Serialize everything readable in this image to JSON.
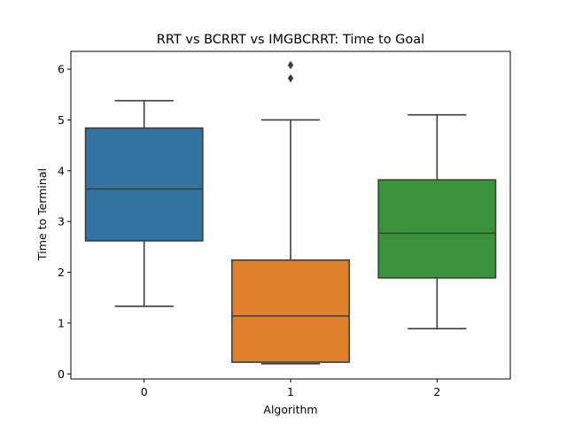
{
  "chart_data": {
    "type": "box",
    "title": "RRT vs BCRRT vs IMGBCRRT: Time to Goal",
    "xlabel": "Algorithm",
    "ylabel": "Time to Terminal",
    "categories": [
      "0",
      "1",
      "2"
    ],
    "ylim": [
      -0.1,
      6.35
    ],
    "yticks": [
      0,
      1,
      2,
      3,
      4,
      5,
      6
    ],
    "grid": false,
    "legend": "none",
    "boxes": [
      {
        "category": "0",
        "whisker_low": 1.33,
        "q1": 2.62,
        "median": 3.64,
        "q3": 4.84,
        "whisker_high": 5.38,
        "outliers": [],
        "color": "#3274a1"
      },
      {
        "category": "1",
        "whisker_low": 0.2,
        "q1": 0.23,
        "median": 1.14,
        "q3": 2.24,
        "whisker_high": 5.0,
        "outliers": [
          5.82,
          6.08
        ],
        "color": "#e1812c"
      },
      {
        "category": "2",
        "whisker_low": 0.89,
        "q1": 1.89,
        "median": 2.77,
        "q3": 3.82,
        "whisker_high": 5.1,
        "outliers": [],
        "color": "#3a923a"
      }
    ],
    "line_color": "#3d3d3d"
  }
}
